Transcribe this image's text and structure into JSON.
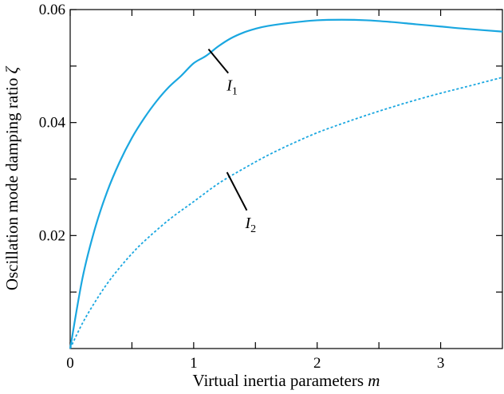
{
  "chart_data": {
    "type": "line",
    "xlabel": {
      "text": "Virtual inertia parameters ",
      "var": "m"
    },
    "ylabel": {
      "text": "Oscillation mode damping ratio ",
      "var": "ζ"
    },
    "xlim": [
      0,
      3.5
    ],
    "ylim": [
      0,
      0.06
    ],
    "xticks": [
      0,
      1,
      2,
      3
    ],
    "xtick_labels": [
      "0",
      "1",
      "2",
      "3"
    ],
    "yticks": [
      0.02,
      0.04,
      0.06
    ],
    "ytick_labels": [
      "0.02",
      "0.04",
      "0.06"
    ],
    "grid": false,
    "legend": "none",
    "series": [
      {
        "id": "I1",
        "style": "solid",
        "color": "#1aa7e0",
        "x": [
          0,
          0.1,
          0.2,
          0.3,
          0.4,
          0.5,
          0.6,
          0.7,
          0.8,
          0.9,
          1.0,
          1.1,
          1.2,
          1.3,
          1.4,
          1.5,
          1.6,
          1.8,
          2.0,
          2.2,
          2.4,
          2.6,
          2.8,
          3.0,
          3.2,
          3.5
        ],
        "y": [
          0,
          0.0125,
          0.0212,
          0.0278,
          0.033,
          0.0373,
          0.0408,
          0.0438,
          0.0463,
          0.0483,
          0.0505,
          0.0518,
          0.0535,
          0.0549,
          0.0559,
          0.0566,
          0.0571,
          0.0577,
          0.0581,
          0.0582,
          0.0581,
          0.0578,
          0.0574,
          0.057,
          0.0566,
          0.0561
        ]
      },
      {
        "id": "I2",
        "style": "dashed",
        "color": "#1aa7e0",
        "x": [
          0,
          0.1,
          0.2,
          0.3,
          0.4,
          0.5,
          0.6,
          0.8,
          1.0,
          1.2,
          1.4,
          1.6,
          1.8,
          2.0,
          2.2,
          2.4,
          2.6,
          2.8,
          3.0,
          3.2,
          3.5
        ],
        "y": [
          0,
          0.0045,
          0.0082,
          0.0115,
          0.0143,
          0.0168,
          0.019,
          0.0228,
          0.026,
          0.0292,
          0.0318,
          0.0342,
          0.0363,
          0.0382,
          0.0398,
          0.0413,
          0.0427,
          0.044,
          0.0452,
          0.0463,
          0.048
        ]
      }
    ],
    "annotations": [
      {
        "label": "I",
        "sub": "1",
        "series": "I1",
        "x": 1.12,
        "y": 0.053,
        "text_x": 1.28,
        "text_y": 0.0465
      },
      {
        "label": "I",
        "sub": "2",
        "series": "I2",
        "x": 1.27,
        "y": 0.0312,
        "text_x": 1.43,
        "text_y": 0.0222
      }
    ]
  }
}
